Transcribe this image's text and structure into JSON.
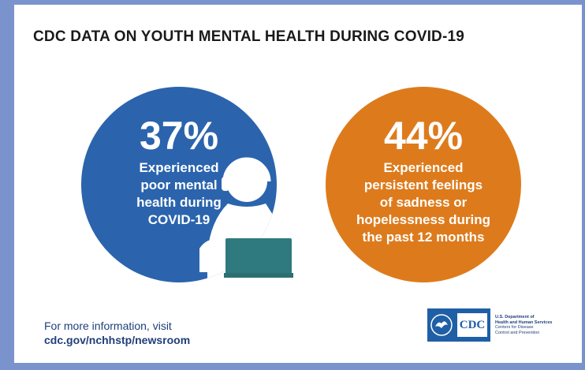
{
  "title": "CDC DATA ON YOUTH MENTAL HEALTH DURING COVID-19",
  "stats": [
    {
      "value": "37%",
      "lines": [
        "Experienced",
        "poor mental",
        "health during",
        "COVID-19"
      ],
      "color": "#2b64ad"
    },
    {
      "value": "44%",
      "lines": [
        "Experienced",
        "persistent feelings",
        "of sadness or",
        "hopelessness during",
        "the past 12 months"
      ],
      "color": "#dd7b1c"
    }
  ],
  "footer": {
    "intro": "For more information, visit",
    "link": "cdc.gov/nchhstp/newsroom"
  },
  "logo": {
    "badge": "CDC",
    "lines": [
      "U.S. Department of",
      "Health and Human Services",
      "Centers for Disease",
      "Control and Prevention"
    ]
  },
  "icons": [
    "hhs-eagle-icon",
    "person-with-headphones-laptop-icon"
  ]
}
